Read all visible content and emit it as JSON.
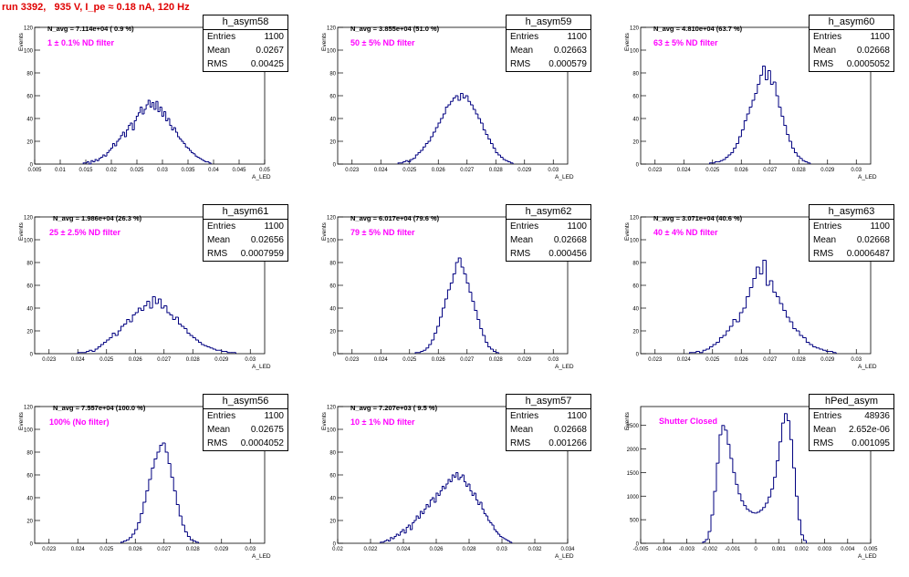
{
  "header": {
    "title": "run 3392,   935 V, I_pe ≈ 0.18 nA, 120 Hz"
  },
  "y_axis_label": "Events",
  "x_axis_label": "A_LED",
  "stat_labels": {
    "entries": "Entries",
    "mean": "Mean",
    "rms": "RMS"
  },
  "histogram_color": "#000080",
  "chart_data": [
    {
      "type": "bar",
      "name": "h_asym58",
      "n_avg": "N_avg = 7.114e+04 ( 0.9 %)",
      "filter": "1 ± 0.1% ND filter",
      "entries": "1100",
      "mean": "0.0267",
      "rms": "0.00425",
      "xlim": [
        0.005,
        0.05
      ],
      "ylim": [
        0,
        120
      ],
      "xticks": [
        "0.005",
        "0.01",
        "0.015",
        "0.02",
        "0.025",
        "0.03",
        "0.035",
        "0.04",
        "0.045",
        "0.05"
      ],
      "yticks": [
        "0",
        "20",
        "40",
        "60",
        "80",
        "100",
        "120"
      ],
      "bin_edges": [
        0.0145,
        0.0395
      ],
      "values": [
        1,
        1,
        2,
        0,
        3,
        2,
        4,
        3,
        5,
        6,
        8,
        7,
        10,
        12,
        14,
        18,
        16,
        20,
        22,
        25,
        28,
        24,
        30,
        34,
        36,
        30,
        38,
        42,
        45,
        50,
        44,
        48,
        52,
        56,
        50,
        54,
        48,
        55,
        46,
        50,
        42,
        46,
        38,
        40,
        34,
        30,
        32,
        28,
        24,
        22,
        20,
        18,
        15,
        14,
        12,
        10,
        9,
        7,
        6,
        5,
        4,
        3,
        2,
        2,
        1
      ]
    },
    {
      "type": "bar",
      "name": "h_asym59",
      "n_avg": "N_avg = 3.855e+04 (51.0 %)",
      "filter": "50 ± 5% ND filter",
      "entries": "1100",
      "mean": "0.02663",
      "rms": "0.000579",
      "xlim": [
        0.0225,
        0.0305
      ],
      "ylim": [
        0,
        120
      ],
      "xticks": [
        "0.023",
        "0.024",
        "0.025",
        "0.026",
        "0.027",
        "0.028",
        "0.029",
        "0.03"
      ],
      "yticks": [
        "0",
        "20",
        "40",
        "60",
        "80",
        "100",
        "120"
      ],
      "bin_edges": [
        0.0246,
        0.0286
      ],
      "values": [
        1,
        1,
        2,
        3,
        2,
        4,
        5,
        8,
        10,
        12,
        15,
        18,
        20,
        24,
        28,
        32,
        36,
        40,
        44,
        50,
        52,
        55,
        58,
        60,
        56,
        62,
        58,
        60,
        55,
        52,
        48,
        44,
        40,
        36,
        30,
        26,
        22,
        18,
        14,
        10,
        8,
        6,
        4,
        3,
        2,
        1
      ]
    },
    {
      "type": "bar",
      "name": "h_asym60",
      "n_avg": "N_avg = 4.810e+04 (63.7 %)",
      "filter": "63 ± 5% ND filter",
      "entries": "1100",
      "mean": "0.02668",
      "rms": "0.0005052",
      "xlim": [
        0.0225,
        0.0305
      ],
      "ylim": [
        0,
        120
      ],
      "xticks": [
        "0.023",
        "0.024",
        "0.025",
        "0.026",
        "0.027",
        "0.028",
        "0.029",
        "0.03"
      ],
      "yticks": [
        "0",
        "20",
        "40",
        "60",
        "80",
        "100",
        "120"
      ],
      "bin_edges": [
        0.0249,
        0.0284
      ],
      "values": [
        1,
        1,
        2,
        2,
        3,
        4,
        6,
        8,
        10,
        14,
        18,
        24,
        30,
        38,
        44,
        50,
        56,
        62,
        70,
        78,
        86,
        74,
        82,
        70,
        72,
        60,
        50,
        42,
        34,
        26,
        20,
        14,
        10,
        7,
        5,
        3,
        2,
        1
      ]
    },
    {
      "type": "bar",
      "name": "h_asym61",
      "n_avg": "N_avg = 1.986e+04 (26.3 %)",
      "filter": "25 ± 2.5% ND filter",
      "entries": "1100",
      "mean": "0.02656",
      "rms": "0.0007959",
      "xlim": [
        0.0225,
        0.0305
      ],
      "ylim": [
        0,
        120
      ],
      "xticks": [
        "0.023",
        "0.024",
        "0.025",
        "0.026",
        "0.027",
        "0.028",
        "0.029",
        "0.03"
      ],
      "yticks": [
        "0",
        "20",
        "40",
        "60",
        "80",
        "100",
        "120"
      ],
      "bin_edges": [
        0.024,
        0.0295
      ],
      "values": [
        1,
        1,
        1,
        2,
        3,
        2,
        4,
        6,
        8,
        10,
        12,
        14,
        18,
        16,
        20,
        24,
        26,
        30,
        28,
        34,
        36,
        40,
        38,
        42,
        46,
        40,
        50,
        44,
        48,
        40,
        42,
        36,
        34,
        30,
        32,
        26,
        24,
        22,
        18,
        16,
        14,
        12,
        10,
        8,
        7,
        6,
        5,
        4,
        3,
        3,
        2,
        2,
        1,
        1,
        1
      ]
    },
    {
      "type": "bar",
      "name": "h_asym62",
      "n_avg": "N_avg = 6.017e+04 (79.6 %)",
      "filter": "79 ± 5% ND filter",
      "entries": "1100",
      "mean": "0.02668",
      "rms": "0.000456",
      "xlim": [
        0.0225,
        0.0305
      ],
      "ylim": [
        0,
        120
      ],
      "xticks": [
        "0.023",
        "0.024",
        "0.025",
        "0.026",
        "0.027",
        "0.028",
        "0.029",
        "0.03"
      ],
      "yticks": [
        "0",
        "20",
        "40",
        "60",
        "80",
        "100",
        "120"
      ],
      "bin_edges": [
        0.0252,
        0.0281
      ],
      "values": [
        1,
        1,
        2,
        3,
        5,
        8,
        12,
        18,
        24,
        32,
        40,
        48,
        56,
        62,
        70,
        80,
        84,
        76,
        70,
        62,
        54,
        46,
        38,
        30,
        22,
        16,
        10,
        6,
        4,
        2,
        1
      ]
    },
    {
      "type": "bar",
      "name": "h_asym63",
      "n_avg": "N_avg = 3.071e+04 (40.6 %)",
      "filter": "40 ± 4% ND filter",
      "entries": "1100",
      "mean": "0.02668",
      "rms": "0.0006487",
      "xlim": [
        0.0225,
        0.0305
      ],
      "ylim": [
        0,
        120
      ],
      "xticks": [
        "0.023",
        "0.024",
        "0.025",
        "0.026",
        "0.027",
        "0.028",
        "0.029",
        "0.03"
      ],
      "yticks": [
        "0",
        "20",
        "40",
        "60",
        "80",
        "100",
        "120"
      ],
      "bin_edges": [
        0.0242,
        0.0293
      ],
      "values": [
        1,
        1,
        2,
        1,
        3,
        4,
        6,
        8,
        10,
        14,
        16,
        20,
        24,
        30,
        28,
        36,
        40,
        50,
        58,
        66,
        76,
        70,
        82,
        60,
        64,
        54,
        50,
        44,
        38,
        32,
        28,
        22,
        20,
        16,
        14,
        10,
        8,
        6,
        5,
        4,
        3,
        2,
        2,
        1
      ]
    },
    {
      "type": "bar",
      "name": "h_asym56",
      "n_avg": "N_avg = 7.557e+04 (100.0 %)",
      "filter": "100% (No filter)",
      "entries": "1100",
      "mean": "0.02675",
      "rms": "0.0004052",
      "xlim": [
        0.0225,
        0.0305
      ],
      "ylim": [
        0,
        120
      ],
      "xticks": [
        "0.023",
        "0.024",
        "0.025",
        "0.026",
        "0.027",
        "0.028",
        "0.029",
        "0.03"
      ],
      "yticks": [
        "0",
        "20",
        "40",
        "60",
        "80",
        "100",
        "120"
      ],
      "bin_edges": [
        0.0255,
        0.0282
      ],
      "values": [
        1,
        2,
        3,
        5,
        8,
        12,
        18,
        26,
        36,
        46,
        56,
        66,
        74,
        80,
        86,
        88,
        80,
        70,
        58,
        46,
        34,
        24,
        16,
        10,
        6,
        3,
        2,
        1
      ]
    },
    {
      "type": "bar",
      "name": "h_asym57",
      "n_avg": "N_avg = 7.207e+03 ( 9.5 %)",
      "filter": "10 ± 1% ND filter",
      "entries": "1100",
      "mean": "0.02668",
      "rms": "0.001266",
      "xlim": [
        0.02,
        0.034
      ],
      "ylim": [
        0,
        120
      ],
      "xticks": [
        "0.02",
        "0.022",
        "0.024",
        "0.026",
        "0.028",
        "0.03",
        "0.032",
        "0.034"
      ],
      "yticks": [
        "0",
        "20",
        "40",
        "60",
        "80",
        "100",
        "120"
      ],
      "bin_edges": [
        0.0226,
        0.0306
      ],
      "values": [
        1,
        1,
        2,
        3,
        2,
        5,
        4,
        6,
        8,
        7,
        10,
        12,
        9,
        14,
        16,
        12,
        18,
        20,
        24,
        22,
        28,
        26,
        30,
        34,
        32,
        38,
        40,
        36,
        44,
        42,
        46,
        50,
        48,
        52,
        56,
        54,
        60,
        58,
        62,
        56,
        58,
        60,
        54,
        50,
        52,
        46,
        42,
        44,
        38,
        34,
        36,
        30,
        26,
        24,
        20,
        18,
        16,
        12,
        10,
        8,
        6,
        5,
        4,
        3,
        2,
        1
      ]
    },
    {
      "type": "bar",
      "name": "hPed_asym",
      "n_avg": "",
      "filter": "Shutter Closed",
      "entries": "48936",
      "mean": "2.652e-06",
      "rms": "0.001095",
      "xlim": [
        -0.005,
        0.005
      ],
      "ylim": [
        0,
        2900
      ],
      "xticks": [
        "-0.005",
        "-0.004",
        "-0.003",
        "-0.002",
        "-0.001",
        "0",
        "0.001",
        "0.002",
        "0.003",
        "0.004",
        "0.005"
      ],
      "yticks": [
        "0",
        "500",
        "1000",
        "1500",
        "2000",
        "2500"
      ],
      "bin_edges": [
        -0.0023,
        0.0022
      ],
      "values": [
        30,
        80,
        250,
        600,
        1100,
        1700,
        2300,
        2500,
        2400,
        2100,
        1800,
        1500,
        1250,
        1050,
        900,
        800,
        720,
        680,
        650,
        640,
        660,
        700,
        760,
        850,
        980,
        1150,
        1400,
        1750,
        2150,
        2550,
        2750,
        2600,
        2200,
        1600,
        1000,
        500,
        180,
        60
      ]
    }
  ]
}
